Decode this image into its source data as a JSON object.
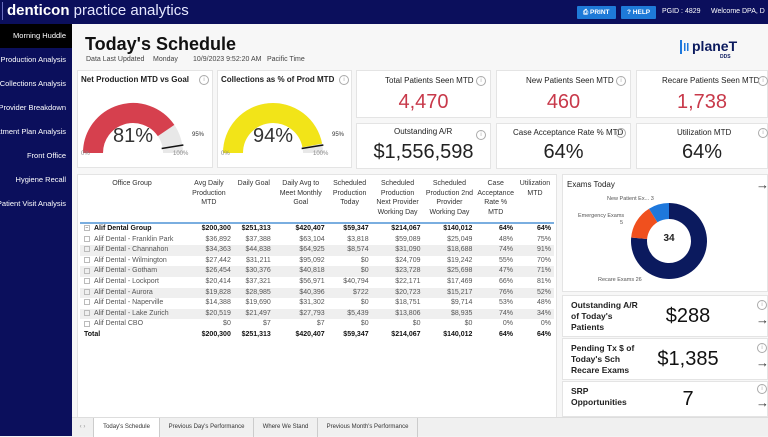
{
  "header": {
    "brand_bold": "denticon",
    "brand_rest": " practice analytics",
    "print_label": "PRINT",
    "help_label": "HELP",
    "pgid": "PGID : 4829",
    "welcome": "Welcome DPA, D"
  },
  "sidebar": {
    "items": [
      {
        "label": "Morning Huddle",
        "active": true
      },
      {
        "label": "Production Analysis"
      },
      {
        "label": "Collections Analysis"
      },
      {
        "label": "Provider Breakdown"
      },
      {
        "label": "Treatment Plan Analysis"
      },
      {
        "label": "Front Office"
      },
      {
        "label": "Hygiene Recall"
      },
      {
        "label": "Patient Visit Analysis"
      }
    ]
  },
  "page": {
    "title": "Today's Schedule",
    "updated_label": "Data Last Updated",
    "updated_day": "Monday",
    "updated_time": "10/9/2023 9:52:20 AM",
    "timezone": "Pacific Time",
    "logo_text": "planeT",
    "logo_sub": "DDS"
  },
  "gauges": [
    {
      "title": "Net Production MTD vs Goal",
      "value_label": "81%",
      "value": 81,
      "target": 95,
      "target_label": "95%",
      "min_label": "0%",
      "max_label": "100%",
      "color": "#d6404e"
    },
    {
      "title": "Collections as % of Prod MTD",
      "value_label": "94%",
      "value": 94,
      "target": 95,
      "target_label": "95%",
      "min_label": "0%",
      "max_label": "100%",
      "color": "#f2e418"
    }
  ],
  "kpis": [
    {
      "title": "Total Patients Seen MTD",
      "value": "4,470",
      "style": "red"
    },
    {
      "title": "New Patients Seen MTD",
      "value": "460",
      "style": "red"
    },
    {
      "title": "Recare Patients Seen MTD",
      "value": "1,738",
      "style": "red"
    },
    {
      "title": "Outstanding A/R",
      "value": "$1,556,598",
      "style": "dark"
    },
    {
      "title": "Case Acceptance Rate % MTD",
      "value": "64%",
      "style": "dark"
    },
    {
      "title": "Utilization MTD",
      "value": "64%",
      "style": "dark"
    }
  ],
  "table": {
    "columns": [
      "Office Group",
      "Avg Daily Production MTD",
      "Daily Goal",
      "Daily Avg to Meet Monthly Goal",
      "Scheduled Production Today",
      "Scheduled Production Next Provider Working Day",
      "Scheduled Production 2nd Provider Working Day",
      "Case Acceptance Rate % MTD",
      "Utilization MTD"
    ],
    "group_row": [
      "Alif Dental Group",
      "$200,300",
      "$251,313",
      "$420,407",
      "$59,347",
      "$214,067",
      "$140,012",
      "64%",
      "64%"
    ],
    "rows": [
      [
        "Alif Dental - Franklin Park",
        "$36,892",
        "$37,388",
        "$63,104",
        "$3,818",
        "$59,089",
        "$25,049",
        "48%",
        "75%"
      ],
      [
        "Alif Dental - Channahon",
        "$34,363",
        "$44,838",
        "$64,925",
        "$8,574",
        "$31,090",
        "$18,688",
        "74%",
        "91%"
      ],
      [
        "Alif Dental - Wilmington",
        "$27,442",
        "$31,211",
        "$95,092",
        "$0",
        "$24,709",
        "$19,242",
        "55%",
        "70%"
      ],
      [
        "Alif Dental - Gotham",
        "$26,454",
        "$30,376",
        "$40,818",
        "$0",
        "$23,728",
        "$25,698",
        "47%",
        "71%"
      ],
      [
        "Alif Dental - Lockport",
        "$20,414",
        "$37,321",
        "$56,971",
        "$40,794",
        "$22,171",
        "$17,469",
        "66%",
        "81%"
      ],
      [
        "Alif Dental - Aurora",
        "$19,828",
        "$28,985",
        "$40,396",
        "$722",
        "$20,723",
        "$15,217",
        "76%",
        "52%"
      ],
      [
        "Alif Dental - Naperville",
        "$14,388",
        "$19,690",
        "$31,302",
        "$0",
        "$18,751",
        "$9,714",
        "53%",
        "48%"
      ],
      [
        "Alif Dental - Lake Zurich",
        "$20,519",
        "$21,497",
        "$27,793",
        "$5,439",
        "$13,806",
        "$8,935",
        "74%",
        "34%"
      ],
      [
        "Alif Dental CBO",
        "$0",
        "$7",
        "$7",
        "$0",
        "$0",
        "$0",
        "0%",
        "0%"
      ]
    ],
    "total_row": [
      "Total",
      "$200,300",
      "$251,313",
      "$420,407",
      "$59,347",
      "$214,067",
      "$140,012",
      "64%",
      "64%"
    ]
  },
  "exams": {
    "title": "Exams Today",
    "total": "34",
    "segments": [
      {
        "label": "Recare Exams",
        "value": 26,
        "color": "#0b1a5e"
      },
      {
        "label": "Emergency Exams",
        "value": 5,
        "color": "#f0501e"
      },
      {
        "label": "New Patient Ex...",
        "value": 3,
        "color": "#1e78dc"
      }
    ],
    "label_new": "New Patient Ex... 3",
    "label_emergency": "Emergency Exams",
    "label_emergency_val": "5",
    "label_recare": "Recare Exams 26"
  },
  "side_kpis": [
    {
      "label": "Outstanding A/R of Today's Patients",
      "value": "$288"
    },
    {
      "label": "Pending Tx $ of Today's Sch Recare Exams",
      "value": "$1,385"
    },
    {
      "label": "SRP Opportunities",
      "value": "7"
    }
  ],
  "tabs": [
    {
      "label": "Today's Schedule",
      "active": true
    },
    {
      "label": "Previous Day's Performance"
    },
    {
      "label": "Where We Stand"
    },
    {
      "label": "Previous Month's Performance"
    }
  ],
  "icons": {
    "info": "i",
    "arrow": "→",
    "print": "🖶",
    "help": "?"
  }
}
